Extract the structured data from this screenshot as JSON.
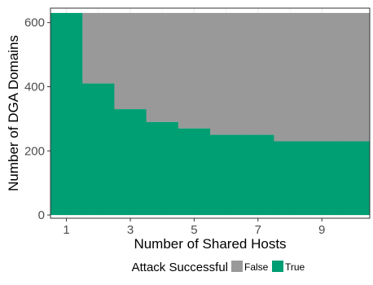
{
  "chart_data": {
    "type": "area",
    "x": [
      1,
      2,
      3,
      4,
      5,
      6,
      7,
      8,
      9,
      10
    ],
    "x_ticks": [
      1,
      3,
      5,
      7,
      9
    ],
    "y_ticks": [
      0,
      200,
      400,
      600
    ],
    "xlabel": "Number of Shared Hosts",
    "ylabel": "Number of DGA Domains",
    "xlim": [
      0.5,
      10.5
    ],
    "ylim": [
      -10,
      645
    ],
    "total": 630,
    "series": [
      {
        "name": "True",
        "values": [
          630,
          410,
          330,
          290,
          270,
          250,
          250,
          230,
          230,
          230
        ],
        "color": "#009E73"
      }
    ],
    "legend": {
      "title": "Attack Successful",
      "position": "bottom",
      "entries": [
        {
          "label": "False",
          "color": "#999999"
        },
        {
          "label": "True",
          "color": "#009E73"
        }
      ]
    },
    "grid": true,
    "panel_background": "#ffffff",
    "grid_color": "#ebebeb"
  }
}
